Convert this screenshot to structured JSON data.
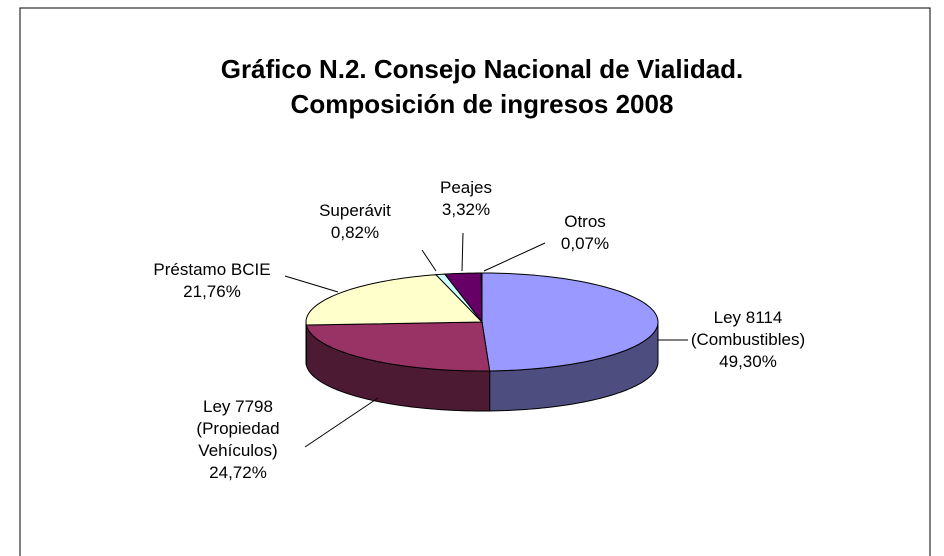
{
  "chart_data": {
    "type": "pie3d",
    "title": "Gráfico N.2. Consejo Nacional de Vialidad. Composición de ingresos 2008",
    "categories": [
      "Ley  8114 (Combustibles)",
      "Ley 7798 (Propiedad Vehículos)",
      "Préstamo BCIE",
      "Superávit",
      "Peajes",
      "Otros"
    ],
    "values": [
      49.3,
      24.72,
      21.76,
      0.82,
      3.32,
      0.07
    ],
    "value_labels": [
      "49,30%",
      "24,72%",
      "21,76%",
      "0,82%",
      "3,32%",
      "0,07%"
    ],
    "colors": [
      "#9999ff",
      "#993366",
      "#ffffcc",
      "#ccffff",
      "#660066",
      "#ff8080"
    ]
  }
}
